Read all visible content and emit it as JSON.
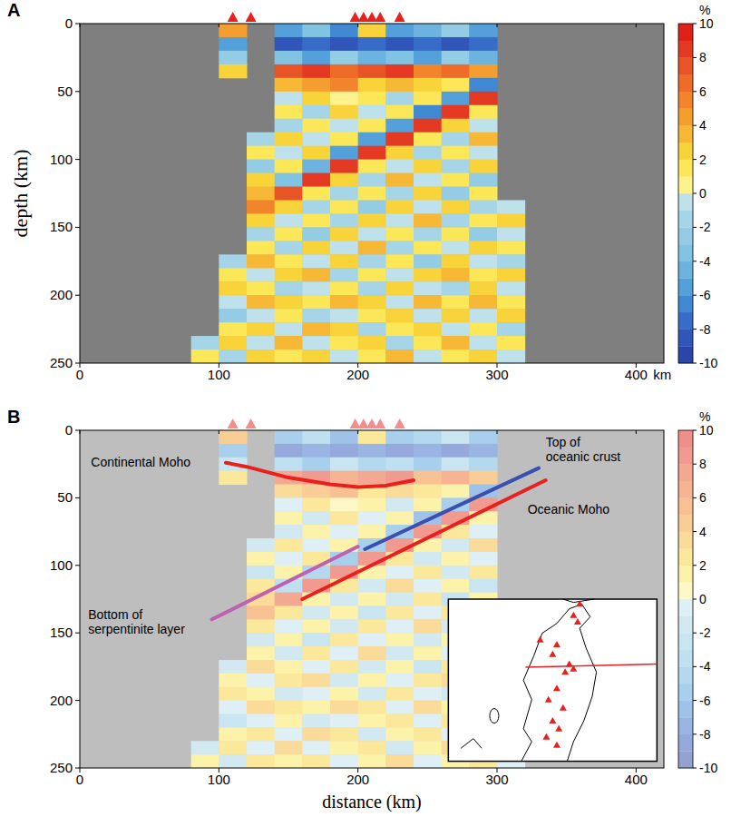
{
  "chart_data": {
    "type": "heatmap",
    "ylabel": "depth (km)",
    "xlabel": "distance (km)",
    "x_unit": "km",
    "xlim": [
      0,
      420
    ],
    "ylim": [
      0,
      250
    ],
    "xticks": [
      0,
      100,
      200,
      300,
      400
    ],
    "yticks": [
      0,
      50,
      100,
      150,
      200,
      250
    ],
    "cell_x": [
      80,
      100,
      120,
      140,
      160,
      180,
      200,
      220,
      240,
      260,
      280,
      300,
      320
    ],
    "cell_depth": [
      0,
      10,
      20,
      30,
      40,
      50,
      60,
      70,
      80,
      90,
      100,
      110,
      120,
      130,
      140,
      150,
      160,
      170,
      180,
      190,
      200,
      210,
      220,
      230,
      240,
      250
    ],
    "cells": [
      [
        null,
        4,
        null,
        -6,
        -4,
        -7,
        2,
        -6,
        -5,
        -3,
        -6,
        null
      ],
      [
        null,
        -6,
        null,
        -9,
        -8,
        -9,
        -8,
        -9,
        -8,
        -9,
        -8,
        null
      ],
      [
        null,
        -3,
        null,
        -4,
        -6,
        -3,
        -5,
        -4,
        -6,
        -3,
        -5,
        null
      ],
      [
        null,
        2,
        null,
        7,
        8,
        6,
        7,
        8,
        5,
        6,
        4,
        null
      ],
      [
        null,
        null,
        null,
        3,
        4,
        5,
        2,
        3,
        2,
        1,
        -7,
        null
      ],
      [
        null,
        null,
        null,
        -1,
        2,
        0,
        1,
        -2,
        1,
        -6,
        8,
        null
      ],
      [
        null,
        null,
        null,
        1,
        -2,
        2,
        -1,
        1,
        -7,
        8,
        1,
        null
      ],
      [
        null,
        null,
        null,
        -2,
        1,
        -1,
        1,
        -6,
        8,
        2,
        -1,
        null
      ],
      [
        null,
        null,
        -2,
        2,
        -1,
        1,
        -6,
        8,
        1,
        -2,
        3,
        null
      ],
      [
        null,
        null,
        1,
        -1,
        2,
        -6,
        8,
        2,
        -2,
        1,
        -1,
        null
      ],
      [
        null,
        null,
        -3,
        1,
        -5,
        8,
        1,
        -1,
        2,
        -2,
        2,
        null
      ],
      [
        null,
        null,
        2,
        -4,
        8,
        2,
        -2,
        3,
        -1,
        1,
        -3,
        null
      ],
      [
        null,
        null,
        3,
        7,
        1,
        -2,
        1,
        -2,
        2,
        -3,
        1,
        null
      ],
      [
        null,
        null,
        5,
        2,
        -2,
        1,
        -3,
        2,
        -1,
        2,
        -2,
        -1
      ],
      [
        null,
        null,
        2,
        -1,
        1,
        -2,
        2,
        -1,
        3,
        -2,
        1,
        2
      ],
      [
        null,
        null,
        -2,
        1,
        -3,
        2,
        -1,
        1,
        -2,
        1,
        -3,
        -1
      ],
      [
        null,
        null,
        1,
        -2,
        2,
        -1,
        3,
        -2,
        1,
        -1,
        2,
        1
      ],
      [
        null,
        -2,
        3,
        1,
        -1,
        2,
        -2,
        1,
        -3,
        2,
        -1,
        -2
      ],
      [
        null,
        1,
        -1,
        2,
        3,
        -2,
        1,
        -1,
        2,
        3,
        1,
        2
      ],
      [
        null,
        2,
        1,
        -2,
        -1,
        1,
        -2,
        2,
        -1,
        -2,
        2,
        -1
      ],
      [
        null,
        -1,
        3,
        2,
        1,
        3,
        2,
        -1,
        3,
        1,
        3,
        1
      ],
      [
        null,
        -3,
        -1,
        1,
        -2,
        -1,
        1,
        2,
        -1,
        2,
        -1,
        2
      ],
      [
        null,
        1,
        2,
        -1,
        3,
        2,
        -2,
        1,
        2,
        -1,
        1,
        -2
      ],
      [
        -2,
        2,
        -1,
        3,
        -1,
        1,
        2,
        -2,
        1,
        3,
        -1,
        1
      ],
      [
        1,
        -2,
        2,
        1,
        2,
        -1,
        1,
        3,
        -1,
        1,
        2,
        -1
      ]
    ],
    "colorbar": {
      "label": "%",
      "range": [
        -10,
        10
      ],
      "ticks": [
        10,
        8,
        6,
        4,
        2,
        0,
        -2,
        -4,
        -6,
        -8,
        -10
      ]
    },
    "stations": [
      110,
      123,
      198,
      204,
      210,
      216,
      230
    ],
    "panels": [
      {
        "letter": "A"
      },
      {
        "letter": "B",
        "annotations": [
          {
            "label": "Continental Moho",
            "color": "#e8201e",
            "x": [
              105,
              120,
              150,
              180,
              200,
              220,
              240
            ],
            "depth": [
              24,
              27,
              35,
              40,
              42,
              41,
              37
            ]
          },
          {
            "label": "Top of oceanic crust",
            "color": "#3a4fb0",
            "x": [
              205,
              330
            ],
            "depth": [
              88,
              28
            ]
          },
          {
            "label": "Oceanic Moho",
            "color": "#e8201e",
            "x": [
              160,
              335
            ],
            "depth": [
              125,
              37
            ]
          },
          {
            "label": "Bottom of serpentinite layer",
            "color": "#c060b0",
            "x": [
              95,
              200
            ],
            "depth": [
              140,
              86
            ]
          }
        ]
      }
    ]
  }
}
